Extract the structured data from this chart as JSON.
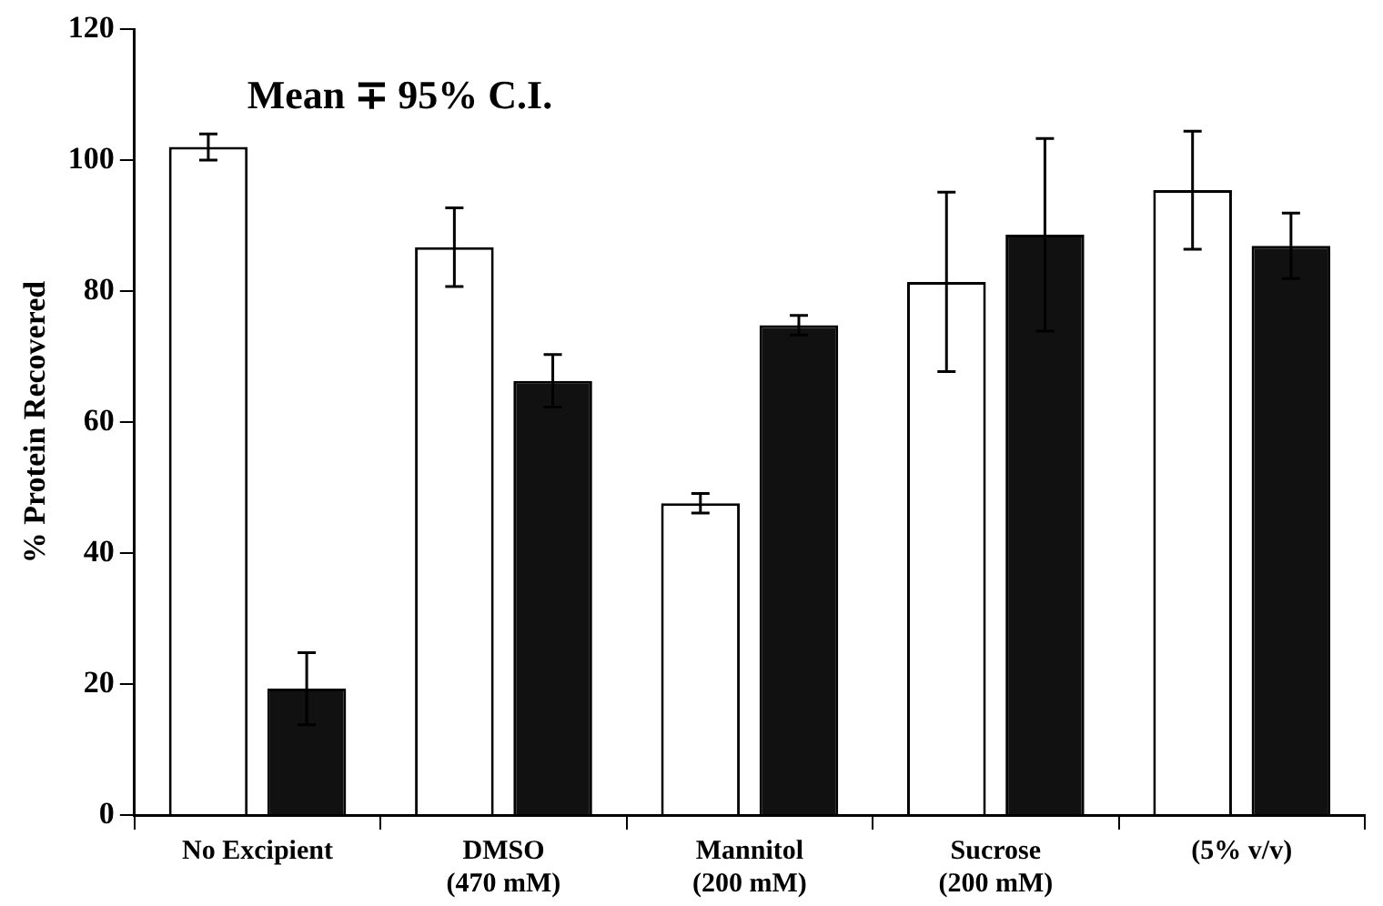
{
  "chart_data": {
    "type": "bar",
    "ylabel": "% Protein Recovered",
    "categories": [
      "No Excipient",
      "DMSO (470 mM)",
      "Mannitol (200 mM)",
      "Sucrose (200 mM)",
      "(5% v/v)"
    ],
    "series": [
      {
        "color": "#ffffff",
        "values": [
          102,
          86.7,
          47.6,
          81.4,
          95.4
        ],
        "errors": [
          2,
          6,
          1.5,
          13.7,
          9
        ]
      },
      {
        "color": "#111111",
        "values": [
          19.3,
          66.3,
          74.8,
          88.6,
          86.9
        ],
        "errors": [
          5.5,
          4,
          1.5,
          14.7,
          5
        ]
      }
    ],
    "ylim": [
      0,
      120
    ],
    "yticks": [
      0,
      20,
      40,
      60,
      80,
      100,
      120
    ],
    "grid": false,
    "legend": false,
    "annotations": [
      "Mean ∓ 95% C.I."
    ]
  }
}
